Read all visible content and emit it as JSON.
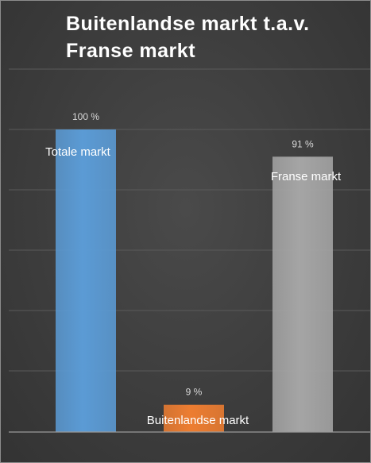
{
  "chart_data": {
    "type": "bar",
    "title": "Buitenlandse markt t.a.v. Franse markt",
    "categories": [
      "Totale markt",
      "Buitenlandse markt",
      "Franse markt"
    ],
    "values": [
      100,
      9,
      91
    ],
    "value_labels": [
      "100 %",
      "9 %",
      "91 %"
    ],
    "colors": [
      "#5b9bd5",
      "#ed7d31",
      "#a5a5a5"
    ],
    "ylim": [
      0,
      100
    ],
    "grid": true,
    "legend": "none"
  }
}
